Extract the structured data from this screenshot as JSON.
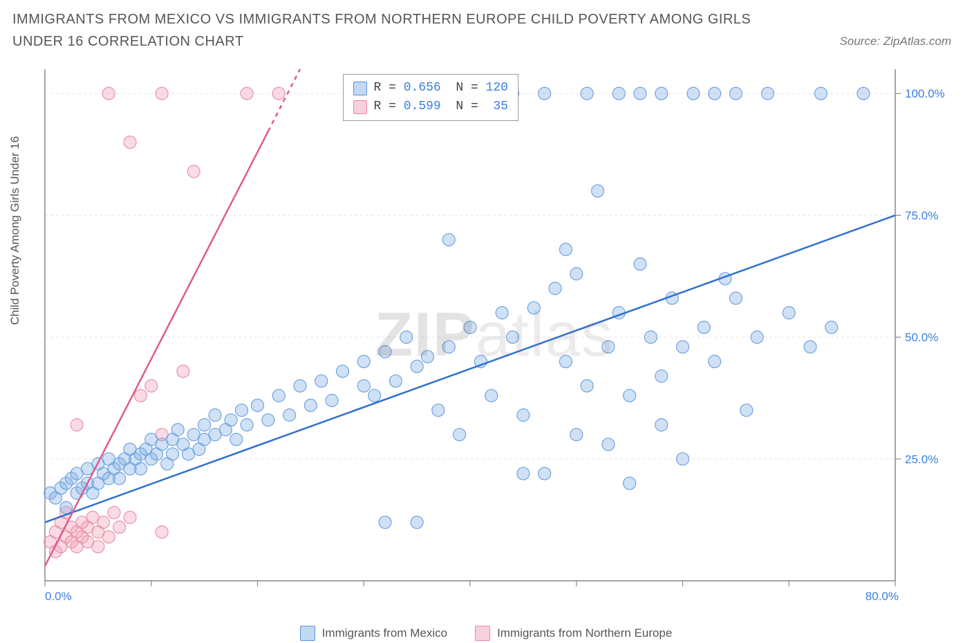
{
  "title": "IMMIGRANTS FROM MEXICO VS IMMIGRANTS FROM NORTHERN EUROPE CHILD POVERTY AMONG GIRLS UNDER 16 CORRELATION CHART",
  "source": "Source: ZipAtlas.com",
  "ylabel": "Child Poverty Among Girls Under 16",
  "watermark_a": "ZIP",
  "watermark_b": "atlas",
  "chart": {
    "type": "scatter",
    "background_color": "#ffffff",
    "grid_color": "#e6e6e6",
    "axis_color": "#888888",
    "xlim": [
      0,
      80
    ],
    "ylim": [
      0,
      105
    ],
    "xticks": [
      0,
      10,
      20,
      30,
      40,
      50,
      60,
      70,
      80
    ],
    "xtick_labels": {
      "0": "0.0%",
      "80": "80.0%"
    },
    "yticks": [
      25,
      50,
      75,
      100
    ],
    "ytick_labels": {
      "25": "25.0%",
      "50": "50.0%",
      "75": "75.0%",
      "100": "100.0%"
    },
    "marker_radius": 9,
    "marker_stroke_width": 1.2,
    "line_width": 2.5,
    "tick_label_color_x0": "#3a7fe0",
    "tick_label_color_xmax": "#3a7fe0",
    "tick_label_color_y": "#3a7fe0"
  },
  "series": {
    "mexico": {
      "label": "Immigrants from Mexico",
      "fill": "rgba(120,170,230,0.35)",
      "stroke": "#6fa3dd",
      "line_color": "#2f6fd0",
      "swatch_fill": "rgba(120,170,230,0.45)",
      "swatch_stroke": "#5a94d6",
      "trend": {
        "x1": 0,
        "y1": 12,
        "x2": 80,
        "y2": 75
      },
      "points": [
        [
          0.5,
          18
        ],
        [
          1,
          17
        ],
        [
          1.5,
          19
        ],
        [
          2,
          20
        ],
        [
          2,
          15
        ],
        [
          2.5,
          21
        ],
        [
          3,
          18
        ],
        [
          3,
          22
        ],
        [
          3.5,
          19
        ],
        [
          4,
          20
        ],
        [
          4,
          23
        ],
        [
          4.5,
          18
        ],
        [
          5,
          20
        ],
        [
          5,
          24
        ],
        [
          5.5,
          22
        ],
        [
          6,
          21
        ],
        [
          6,
          25
        ],
        [
          6.5,
          23
        ],
        [
          7,
          24
        ],
        [
          7,
          21
        ],
        [
          7.5,
          25
        ],
        [
          8,
          23
        ],
        [
          8,
          27
        ],
        [
          8.5,
          25
        ],
        [
          9,
          26
        ],
        [
          9,
          23
        ],
        [
          9.5,
          27
        ],
        [
          10,
          25
        ],
        [
          10,
          29
        ],
        [
          10.5,
          26
        ],
        [
          11,
          28
        ],
        [
          11.5,
          24
        ],
        [
          12,
          29
        ],
        [
          12,
          26
        ],
        [
          12.5,
          31
        ],
        [
          13,
          28
        ],
        [
          13.5,
          26
        ],
        [
          14,
          30
        ],
        [
          14.5,
          27
        ],
        [
          15,
          32
        ],
        [
          15,
          29
        ],
        [
          16,
          30
        ],
        [
          16,
          34
        ],
        [
          17,
          31
        ],
        [
          17.5,
          33
        ],
        [
          18,
          29
        ],
        [
          18.5,
          35
        ],
        [
          19,
          32
        ],
        [
          20,
          36
        ],
        [
          21,
          33
        ],
        [
          22,
          38
        ],
        [
          23,
          34
        ],
        [
          24,
          40
        ],
        [
          25,
          36
        ],
        [
          26,
          41
        ],
        [
          27,
          37
        ],
        [
          28,
          43
        ],
        [
          30,
          40
        ],
        [
          30,
          45
        ],
        [
          31,
          38
        ],
        [
          32,
          47
        ],
        [
          33,
          41
        ],
        [
          34,
          50
        ],
        [
          35,
          44
        ],
        [
          36,
          46
        ],
        [
          37,
          35
        ],
        [
          38,
          48
        ],
        [
          39,
          30
        ],
        [
          40,
          52
        ],
        [
          41,
          45
        ],
        [
          42,
          38
        ],
        [
          43,
          55
        ],
        [
          44,
          50
        ],
        [
          45,
          34
        ],
        [
          46,
          56
        ],
        [
          47,
          22
        ],
        [
          48,
          60
        ],
        [
          49,
          45
        ],
        [
          50,
          63
        ],
        [
          51,
          40
        ],
        [
          52,
          80
        ],
        [
          53,
          48
        ],
        [
          54,
          55
        ],
        [
          55,
          38
        ],
        [
          56,
          65
        ],
        [
          57,
          50
        ],
        [
          58,
          42
        ],
        [
          59,
          58
        ],
        [
          60,
          48
        ],
        [
          62,
          52
        ],
        [
          63,
          45
        ],
        [
          64,
          62
        ],
        [
          65,
          58
        ],
        [
          66,
          35
        ],
        [
          67,
          50
        ],
        [
          70,
          55
        ],
        [
          72,
          48
        ],
        [
          74,
          52
        ],
        [
          38,
          70
        ],
        [
          45,
          22
        ],
        [
          50,
          30
        ],
        [
          53,
          28
        ],
        [
          58,
          32
        ],
        [
          49,
          68
        ],
        [
          55,
          20
        ],
        [
          60,
          25
        ],
        [
          32,
          12
        ],
        [
          35,
          12
        ],
        [
          44,
          100
        ],
        [
          47,
          100
        ],
        [
          51,
          100
        ],
        [
          54,
          100
        ],
        [
          56,
          100
        ],
        [
          58,
          100
        ],
        [
          61,
          100
        ],
        [
          63,
          100
        ],
        [
          65,
          100
        ],
        [
          68,
          100
        ],
        [
          73,
          100
        ],
        [
          77,
          100
        ]
      ]
    },
    "neurope": {
      "label": "Immigrants from Northern Europe",
      "fill": "rgba(240,150,175,0.35)",
      "stroke": "#e693ab",
      "line_color": "#e05a8a",
      "swatch_fill": "rgba(240,150,175,0.45)",
      "swatch_stroke": "#e28aa5",
      "trend": {
        "x1": 0,
        "y1": 3,
        "x2": 24,
        "y2": 105
      },
      "trend_dash_from_x": 21,
      "points": [
        [
          0.5,
          8
        ],
        [
          1,
          6
        ],
        [
          1,
          10
        ],
        [
          1.5,
          7
        ],
        [
          1.5,
          12
        ],
        [
          2,
          9
        ],
        [
          2,
          14
        ],
        [
          2.5,
          8
        ],
        [
          2.5,
          11
        ],
        [
          3,
          10
        ],
        [
          3,
          7
        ],
        [
          3.5,
          12
        ],
        [
          3.5,
          9
        ],
        [
          4,
          11
        ],
        [
          4,
          8
        ],
        [
          4.5,
          13
        ],
        [
          5,
          10
        ],
        [
          5,
          7
        ],
        [
          5.5,
          12
        ],
        [
          6,
          9
        ],
        [
          6.5,
          14
        ],
        [
          7,
          11
        ],
        [
          8,
          13
        ],
        [
          9,
          38
        ],
        [
          10,
          40
        ],
        [
          11,
          10
        ],
        [
          13,
          43
        ],
        [
          3,
          32
        ],
        [
          6,
          100
        ],
        [
          8,
          90
        ],
        [
          11,
          100
        ],
        [
          14,
          84
        ],
        [
          19,
          100
        ],
        [
          22,
          100
        ],
        [
          11,
          30
        ]
      ]
    }
  },
  "stats": {
    "rows": [
      {
        "swatch_series": "mexico",
        "r_label": "R = ",
        "r": "0.656",
        "n_label": "  N = ",
        "n": "120"
      },
      {
        "swatch_series": "neurope",
        "r_label": "R = ",
        "r": "0.599",
        "n_label": "  N =  ",
        "n": "35"
      }
    ]
  },
  "legend": [
    {
      "series": "mexico"
    },
    {
      "series": "neurope"
    }
  ]
}
